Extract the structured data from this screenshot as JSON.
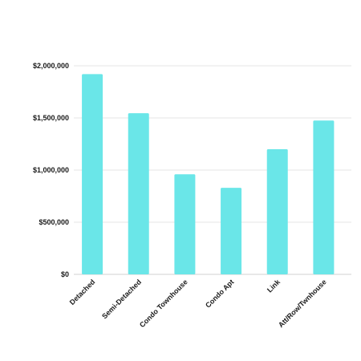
{
  "chart_data": {
    "type": "bar",
    "title": "",
    "xlabel": "",
    "ylabel": "",
    "categories": [
      "Detached",
      "Semi-Detached",
      "Condo Townhouse",
      "Condo Apt",
      "Link",
      "Att/Row/Twnhouse"
    ],
    "values": [
      1920000,
      1545000,
      960000,
      830000,
      1200000,
      1475000
    ],
    "ylim": [
      0,
      2000000
    ],
    "yticks": [
      {
        "value": 0,
        "label": "$0"
      },
      {
        "value": 500000,
        "label": "$500,000"
      },
      {
        "value": 1000000,
        "label": "$1,000,000"
      },
      {
        "value": 1500000,
        "label": "$1,500,000"
      },
      {
        "value": 2000000,
        "label": "$2,000,000"
      }
    ],
    "grid": true,
    "bar_color": "#6ae6e8",
    "grid_color": "#e6e6e6"
  }
}
